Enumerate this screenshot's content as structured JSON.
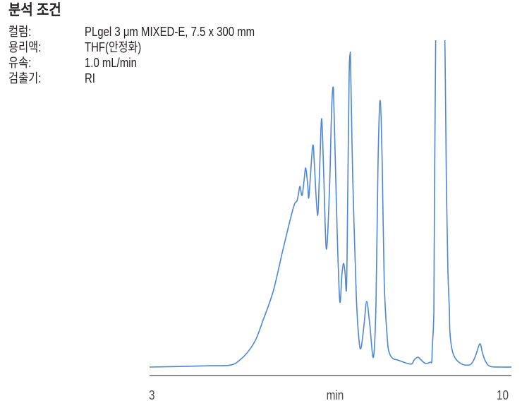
{
  "conditions": {
    "title": "분석 조건",
    "rows": [
      {
        "label": "컬럼:",
        "value": "PLgel 3 μm MIXED-E, 7.5 x 300 mm"
      },
      {
        "label": "용리액:",
        "value": "THF(안정화)"
      },
      {
        "label": "유속:",
        "value": "1.0 mL/min"
      },
      {
        "label": "검출기:",
        "value": "RI"
      }
    ]
  },
  "colors": {
    "trace": "#4f87d0",
    "axis": "#8c8c8c",
    "text": "#231f20",
    "tick_text": "#4a4a4a"
  },
  "chart_data": {
    "type": "line",
    "title": "",
    "xlabel": "min",
    "ylabel": "",
    "xlim": [
      3,
      10
    ],
    "ylim": [
      0,
      100
    ],
    "grid": false,
    "legend": null,
    "x_ticks": [
      {
        "value": 3,
        "label": "3"
      },
      {
        "value": 10,
        "label": "10"
      }
    ],
    "notes": "Tallest peak near 8.6 min extends beyond top of plot (clipped).",
    "series": [
      {
        "name": "RI",
        "x": [
          3.0,
          3.65,
          4.2,
          4.57,
          4.75,
          4.92,
          5.06,
          5.2,
          5.39,
          5.57,
          5.7,
          5.8,
          5.85,
          5.88,
          5.91,
          5.95,
          5.99,
          6.02,
          6.06,
          6.08,
          6.12,
          6.15,
          6.17,
          6.19,
          6.25,
          6.29,
          6.33,
          6.37,
          6.42,
          6.48,
          6.52,
          6.55,
          6.57,
          6.63,
          6.68,
          6.72,
          6.75,
          6.78,
          6.81,
          6.83,
          6.86,
          6.88,
          6.89,
          6.93,
          7.0,
          7.05,
          7.09,
          7.15,
          7.2,
          7.26,
          7.33,
          7.38,
          7.42,
          7.46,
          7.5,
          7.54,
          7.6,
          7.64,
          7.71,
          7.79,
          8.05,
          8.12,
          8.19,
          8.25,
          8.34,
          8.43,
          8.46,
          8.47,
          8.5,
          8.51,
          8.53,
          8.55,
          8.62,
          8.69,
          8.72,
          8.74,
          8.77,
          8.8,
          8.81,
          8.85,
          8.91,
          9.0,
          9.11,
          9.22,
          9.3,
          9.39,
          9.44,
          9.5,
          9.59,
          9.8,
          10.0
        ],
        "y": [
          0.0,
          0.2,
          0.4,
          0.6,
          2.2,
          5.0,
          8.6,
          14.5,
          23.1,
          35.2,
          43.8,
          49.7,
          50.8,
          52.9,
          55.3,
          52.5,
          57.2,
          60.9,
          55.7,
          51.8,
          60.5,
          67.0,
          67.4,
          61.6,
          46.4,
          60.5,
          76.0,
          58.3,
          36.1,
          54.0,
          77.8,
          85.7,
          77.8,
          41.0,
          20.1,
          28.1,
          31.7,
          29.2,
          24.0,
          47.5,
          88.6,
          95.7,
          91.8,
          58.3,
          21.6,
          8.6,
          5.8,
          13.0,
          20.1,
          13.0,
          3.0,
          19.4,
          62.6,
          81.6,
          62.6,
          25.9,
          8.6,
          4.3,
          2.6,
          2.2,
          0.9,
          2.2,
          3.0,
          2.2,
          1.1,
          1.5,
          1.7,
          6.5,
          17.3,
          47.5,
          90.7,
          123.1,
          177.1,
          123.1,
          90.7,
          58.3,
          30.2,
          17.3,
          10.8,
          5.4,
          2.8,
          1.3,
          0.6,
          0.9,
          3.2,
          7.1,
          4.3,
          1.7,
          0.2,
          0.0,
          0.0
        ]
      }
    ]
  }
}
